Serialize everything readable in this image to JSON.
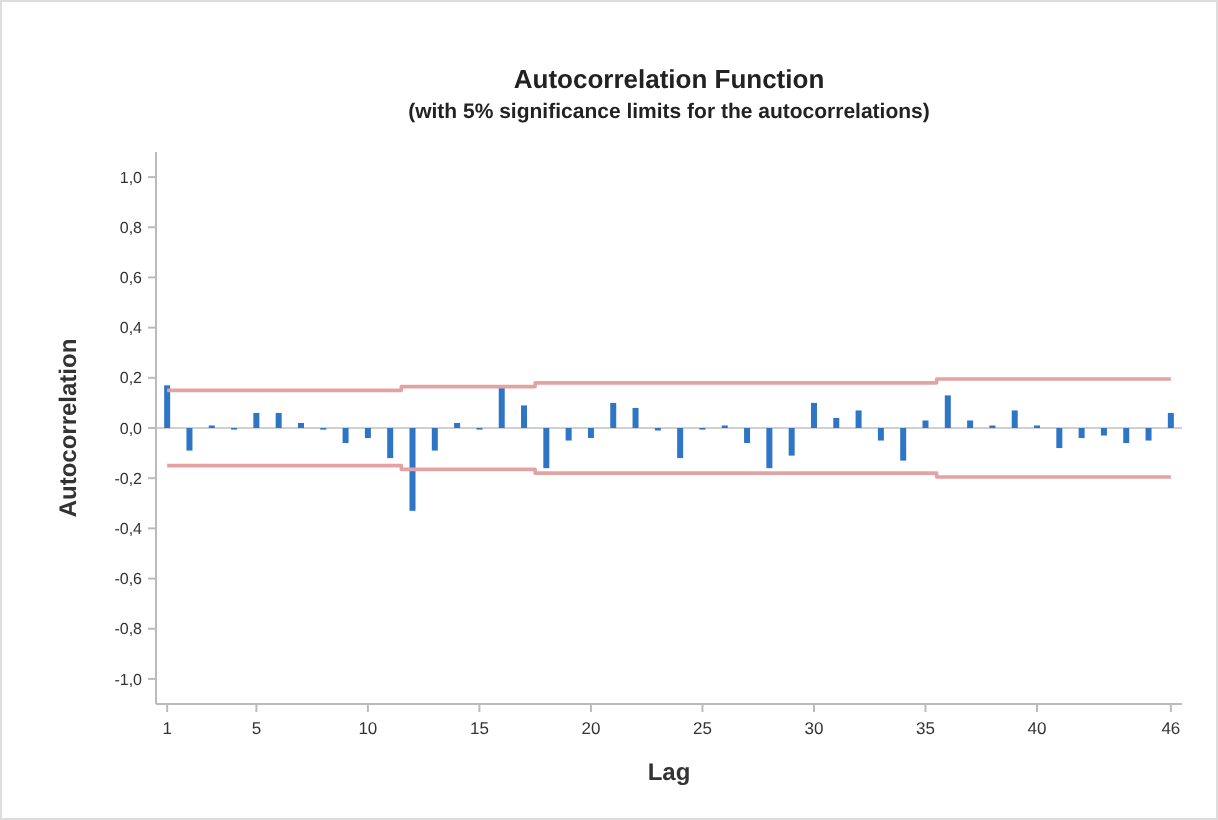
{
  "chart_data": {
    "type": "bar",
    "title": "Autocorrelation Function",
    "subtitle": "(with 5% significance limits for the autocorrelations)",
    "xlabel": "Lag",
    "ylabel": "Autocorrelation",
    "x": [
      1,
      2,
      3,
      4,
      5,
      6,
      7,
      8,
      9,
      10,
      11,
      12,
      13,
      14,
      15,
      16,
      17,
      18,
      19,
      20,
      21,
      22,
      23,
      24,
      25,
      26,
      27,
      28,
      29,
      30,
      31,
      32,
      33,
      34,
      35,
      36,
      37,
      38,
      39,
      40,
      41,
      42,
      43,
      44,
      45,
      46
    ],
    "series": [
      {
        "color": "#2e75c6",
        "values": [
          0.17,
          -0.09,
          0.01,
          0.0,
          0.06,
          0.06,
          0.02,
          0.0,
          -0.06,
          -0.04,
          -0.12,
          -0.33,
          -0.09,
          0.02,
          0.0,
          0.16,
          0.09,
          -0.16,
          -0.05,
          -0.04,
          0.1,
          0.08,
          -0.01,
          -0.12,
          0.0,
          0.01,
          -0.06,
          -0.16,
          -0.11,
          0.1,
          0.04,
          0.07,
          -0.05,
          -0.13,
          0.03,
          0.13,
          0.03,
          0.01,
          0.07,
          0.01,
          -0.08,
          -0.04,
          -0.03,
          -0.06,
          -0.05,
          0.06
        ]
      },
      {
        "type": "step",
        "color": "#e3a3a3",
        "values": [
          0.15,
          0.15,
          0.15,
          0.15,
          0.15,
          0.15,
          0.15,
          0.15,
          0.15,
          0.15,
          0.15,
          0.165,
          0.165,
          0.165,
          0.165,
          0.165,
          0.165,
          0.18,
          0.18,
          0.18,
          0.18,
          0.18,
          0.18,
          0.18,
          0.18,
          0.18,
          0.18,
          0.18,
          0.18,
          0.18,
          0.18,
          0.18,
          0.18,
          0.18,
          0.18,
          0.195,
          0.195,
          0.195,
          0.195,
          0.195,
          0.195,
          0.195,
          0.195,
          0.195,
          0.195,
          0.195
        ]
      },
      {
        "type": "step",
        "color": "#e3a3a3",
        "values": [
          -0.15,
          -0.15,
          -0.15,
          -0.15,
          -0.15,
          -0.15,
          -0.15,
          -0.15,
          -0.15,
          -0.15,
          -0.15,
          -0.165,
          -0.165,
          -0.165,
          -0.165,
          -0.165,
          -0.165,
          -0.18,
          -0.18,
          -0.18,
          -0.18,
          -0.18,
          -0.18,
          -0.18,
          -0.18,
          -0.18,
          -0.18,
          -0.18,
          -0.18,
          -0.18,
          -0.18,
          -0.18,
          -0.18,
          -0.18,
          -0.18,
          -0.195,
          -0.195,
          -0.195,
          -0.195,
          -0.195,
          -0.195,
          -0.195,
          -0.195,
          -0.195,
          -0.195,
          -0.195
        ]
      }
    ],
    "xlim": [
      0.5,
      46.5
    ],
    "xticks": [
      1,
      5,
      10,
      15,
      20,
      25,
      30,
      35,
      40,
      46
    ],
    "ylim": [
      -1.1,
      1.1
    ],
    "yticks": [
      {
        "value": -1,
        "label": "-1,0"
      },
      {
        "value": -0.8,
        "label": "-0,8"
      },
      {
        "value": -0.6,
        "label": "-0,6"
      },
      {
        "value": -0.4,
        "label": "-0,4"
      },
      {
        "value": -0.2,
        "label": "-0,2"
      },
      {
        "value": 0,
        "label": "0,0"
      },
      {
        "value": 0.2,
        "label": "0,2"
      },
      {
        "value": 0.4,
        "label": "0,4"
      },
      {
        "value": 0.6,
        "label": "0,6"
      },
      {
        "value": 0.8,
        "label": "0,8"
      },
      {
        "value": 1,
        "label": "1,0"
      }
    ],
    "ref_lines": [
      {
        "axis": "y",
        "value": 0,
        "color": "#d0d0d0"
      }
    ]
  }
}
